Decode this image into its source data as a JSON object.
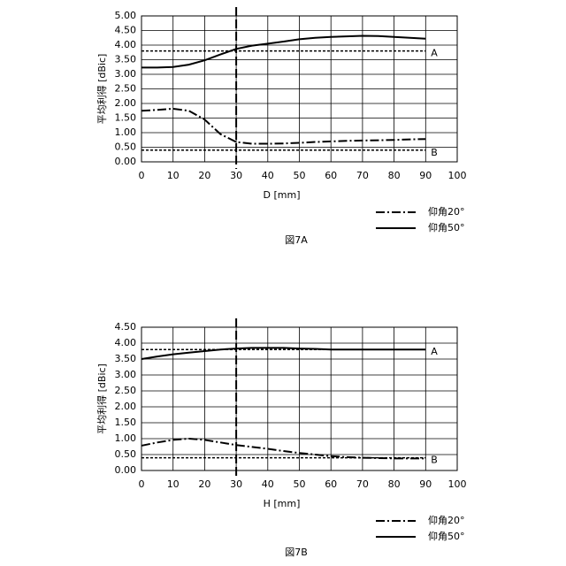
{
  "chart_data": [
    {
      "type": "line",
      "caption": "図7A",
      "xlabel": "D [mm]",
      "ylabel": "平均利得 [dBic]",
      "x": [
        0,
        5,
        10,
        15,
        20,
        25,
        30,
        35,
        40,
        45,
        50,
        55,
        60,
        65,
        70,
        75,
        80,
        85,
        90
      ],
      "series": [
        {
          "name": "仰角20°",
          "color": "#000000",
          "dash": "dash-dot",
          "values": [
            1.75,
            1.78,
            1.82,
            1.75,
            1.45,
            0.95,
            0.68,
            0.62,
            0.62,
            0.63,
            0.65,
            0.68,
            0.7,
            0.72,
            0.73,
            0.74,
            0.75,
            0.77,
            0.78
          ]
        },
        {
          "name": "仰角50°",
          "color": "#000000",
          "dash": "solid",
          "values": [
            3.23,
            3.23,
            3.25,
            3.33,
            3.48,
            3.68,
            3.87,
            3.98,
            4.05,
            4.12,
            4.2,
            4.25,
            4.28,
            4.3,
            4.32,
            4.31,
            4.28,
            4.25,
            4.22
          ]
        }
      ],
      "reference_lines": [
        {
          "value": 3.8,
          "label": "A"
        },
        {
          "value": 0.4,
          "label": "B"
        }
      ],
      "vline": 30,
      "xlim": [
        0,
        100
      ],
      "xticks": [
        0,
        10,
        20,
        30,
        40,
        50,
        60,
        70,
        80,
        90,
        100
      ],
      "ylim": [
        0,
        5
      ],
      "yticks": [
        {
          "value": 0,
          "label": "0.00"
        },
        {
          "value": 0.5,
          "label": "0.50"
        },
        {
          "value": 1,
          "label": "1.00"
        },
        {
          "value": 1.5,
          "label": "1.50"
        },
        {
          "value": 2,
          "label": "2.00"
        },
        {
          "value": 2.5,
          "label": "2.50"
        },
        {
          "value": 3,
          "label": "3.00"
        },
        {
          "value": 3.5,
          "label": "3.50"
        },
        {
          "value": 4,
          "label": "4.00"
        },
        {
          "value": 4.5,
          "label": "4.50"
        },
        {
          "value": 5,
          "label": "5.00"
        }
      ],
      "grid": true,
      "legend": "below-right"
    },
    {
      "type": "line",
      "caption": "図7B",
      "xlabel": "H [mm]",
      "ylabel": "平均利得 [dBic]",
      "x": [
        0,
        5,
        10,
        15,
        20,
        25,
        30,
        35,
        40,
        45,
        50,
        55,
        60,
        65,
        70,
        75,
        80,
        85,
        90
      ],
      "series": [
        {
          "name": "仰角20°",
          "color": "#000000",
          "dash": "dash-dot",
          "values": [
            0.78,
            0.88,
            0.96,
            1.0,
            0.96,
            0.88,
            0.8,
            0.74,
            0.68,
            0.61,
            0.55,
            0.5,
            0.45,
            0.42,
            0.4,
            0.39,
            0.38,
            0.38,
            0.38
          ]
        },
        {
          "name": "仰角50°",
          "color": "#000000",
          "dash": "solid",
          "values": [
            3.5,
            3.58,
            3.65,
            3.7,
            3.75,
            3.8,
            3.83,
            3.85,
            3.85,
            3.85,
            3.83,
            3.82,
            3.8,
            3.8,
            3.8,
            3.8,
            3.8,
            3.8,
            3.8
          ]
        }
      ],
      "reference_lines": [
        {
          "value": 3.8,
          "label": "A"
        },
        {
          "value": 0.4,
          "label": "B"
        }
      ],
      "vline": 30,
      "xlim": [
        0,
        100
      ],
      "xticks": [
        0,
        10,
        20,
        30,
        40,
        50,
        60,
        70,
        80,
        90,
        100
      ],
      "ylim": [
        0,
        4.5
      ],
      "yticks": [
        {
          "value": 0,
          "label": "0.00"
        },
        {
          "value": 0.5,
          "label": "0.50"
        },
        {
          "value": 1,
          "label": "1.00"
        },
        {
          "value": 1.5,
          "label": "1.50"
        },
        {
          "value": 2,
          "label": "2.00"
        },
        {
          "value": 2.5,
          "label": "2.50"
        },
        {
          "value": 3,
          "label": "3.00"
        },
        {
          "value": 3.5,
          "label": "3.50"
        },
        {
          "value": 4,
          "label": "4.00"
        },
        {
          "value": 4.5,
          "label": "4.50"
        }
      ],
      "grid": true,
      "legend": "below-right"
    }
  ]
}
